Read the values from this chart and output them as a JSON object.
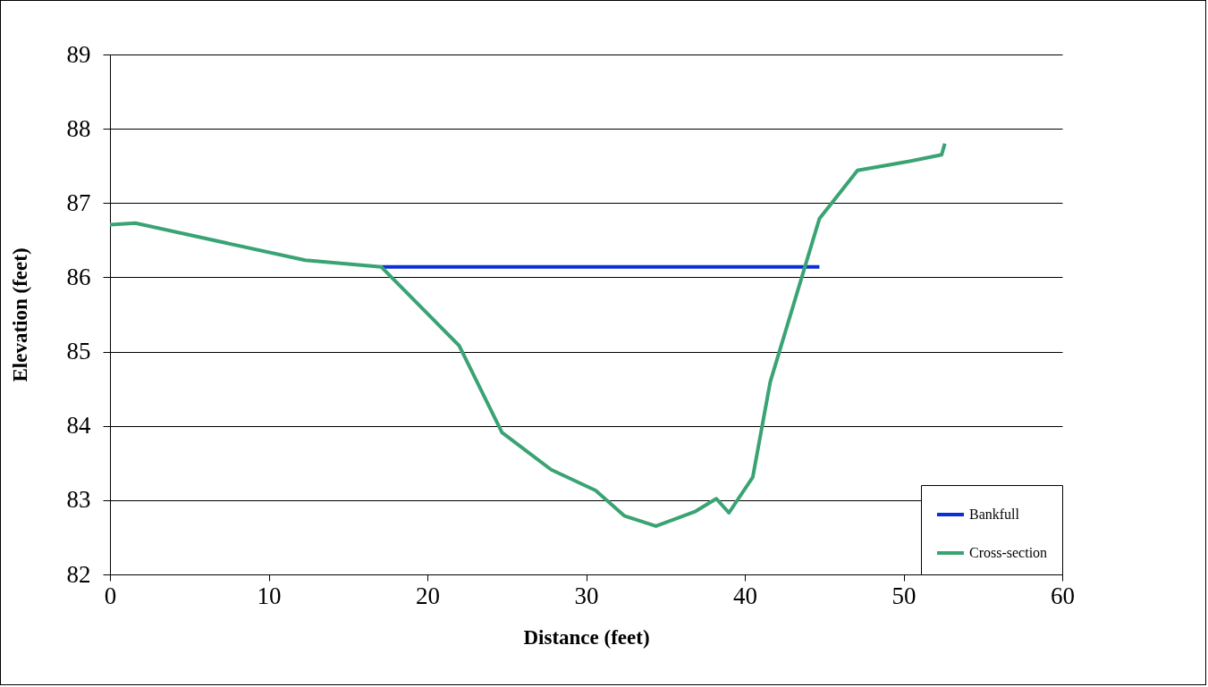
{
  "chart_data": {
    "type": "line",
    "xlabel": "Distance (feet)",
    "ylabel": "Elevation (feet)",
    "xlim": [
      0,
      60
    ],
    "xticks": [
      0,
      10,
      20,
      30,
      40,
      50,
      60
    ],
    "ylim": [
      82,
      89
    ],
    "yticks": [
      82,
      83,
      84,
      85,
      86,
      87,
      88,
      89
    ],
    "grid": "y",
    "legend": "bottom right",
    "line_style": "solid",
    "series": [
      {
        "name": "Bankfull",
        "color": "#0b2fd6",
        "x": [
          17.1,
          22.0,
          24.7,
          27.8,
          30.6,
          32.4,
          34.4,
          36.9,
          38.2,
          39.0,
          40.5,
          41.6,
          44.7
        ],
        "values": [
          86.14,
          86.14,
          86.14,
          86.14,
          86.14,
          86.14,
          86.14,
          86.14,
          86.14,
          86.14,
          86.14,
          86.14,
          86.14
        ]
      },
      {
        "name": "Cross-section",
        "color": "#3aa374",
        "x": [
          0,
          1.6,
          12.3,
          17.1,
          22.0,
          24.7,
          27.8,
          30.6,
          32.4,
          34.4,
          36.9,
          38.2,
          39.0,
          40.5,
          41.6,
          44.7,
          47.1,
          50.3,
          52.4,
          52.6
        ],
        "values": [
          86.71,
          86.73,
          86.23,
          86.14,
          85.08,
          83.91,
          83.41,
          83.13,
          82.79,
          82.65,
          82.85,
          83.02,
          82.83,
          83.31,
          84.59,
          86.79,
          87.44,
          87.56,
          87.65,
          87.8
        ]
      }
    ]
  }
}
